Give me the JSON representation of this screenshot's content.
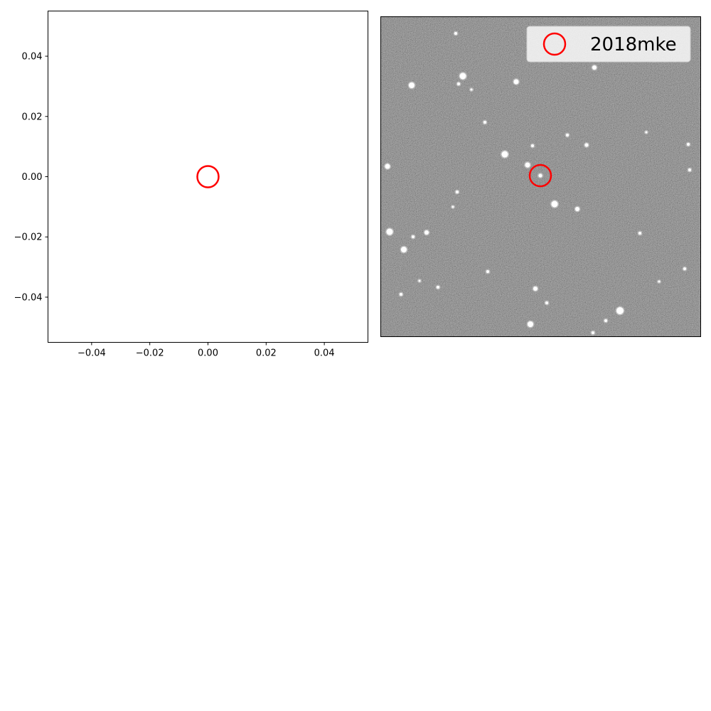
{
  "chart_data": [
    {
      "type": "scatter",
      "title": "",
      "xlabel": "",
      "ylabel": "",
      "xlim": [
        -0.055,
        0.055
      ],
      "ylim": [
        -0.055,
        0.055
      ],
      "x_ticks": [
        -0.04,
        -0.02,
        0.0,
        0.02,
        0.04
      ],
      "x_tick_labels": [
        "−0.04",
        "−0.02",
        "0.00",
        "0.02",
        "0.04"
      ],
      "y_ticks": [
        0.04,
        0.02,
        0.0,
        -0.02,
        -0.04
      ],
      "y_tick_labels": [
        "0.04",
        "0.02",
        "0.00",
        "−0.02",
        "−0.04"
      ],
      "grid": false,
      "series": [
        {
          "points": [
            {
              "x": 0.0,
              "y": 0.0
            }
          ],
          "marker": "open-circle",
          "color": "#ff0000"
        }
      ]
    },
    {
      "type": "image",
      "background": "grayscale star field",
      "axes_visible": false,
      "marker": {
        "position": "center",
        "shape": "open-circle",
        "color": "#ff0000"
      },
      "legend": {
        "placement": "top-right",
        "entries": [
          {
            "label": "2018mke",
            "marker": "open-circle",
            "color": "#ff0000"
          }
        ]
      }
    }
  ]
}
